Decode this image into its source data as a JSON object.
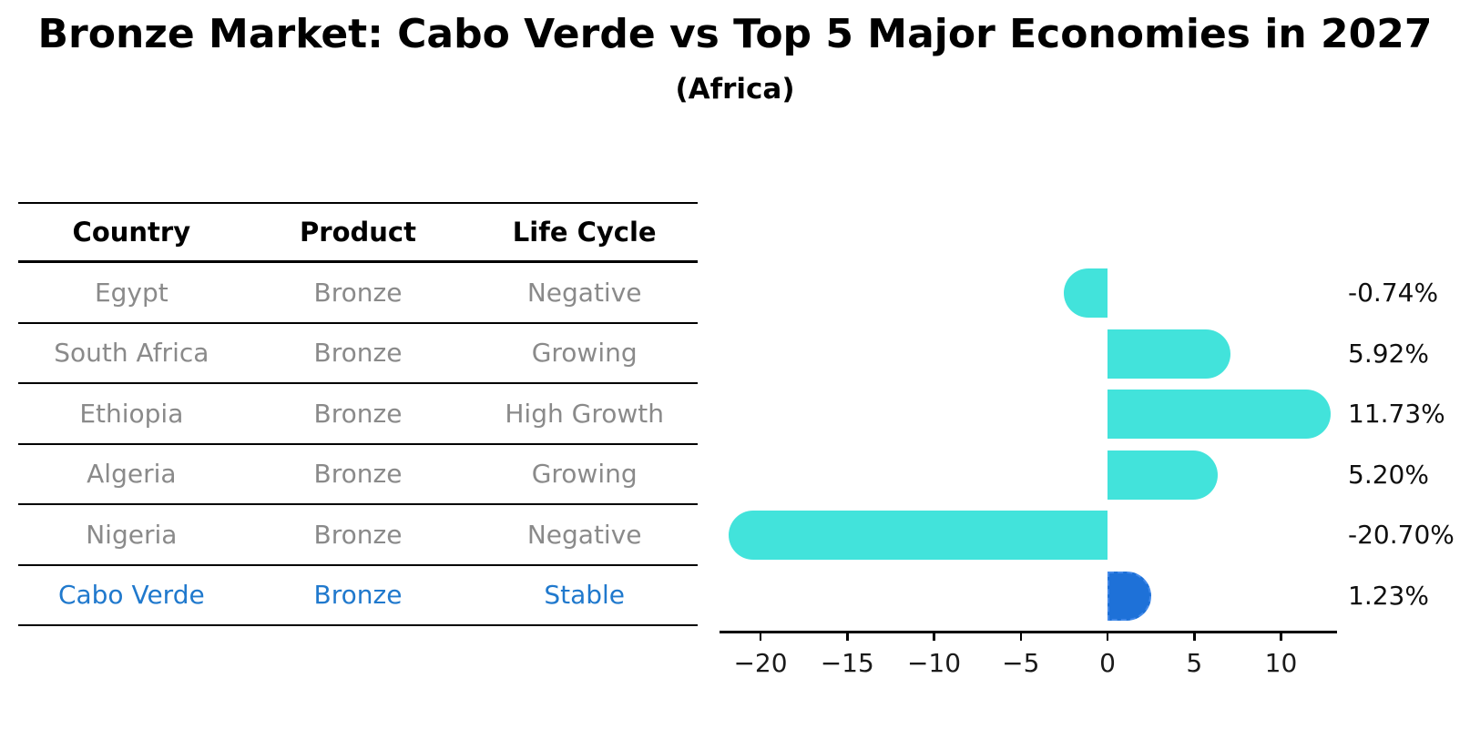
{
  "title": "Bronze Market: Cabo Verde vs Top 5 Major Economies in 2027",
  "subtitle": "(Africa)",
  "table": {
    "headers": [
      "Country",
      "Product",
      "Life Cycle"
    ]
  },
  "chart_data": {
    "type": "bar",
    "orientation": "horizontal",
    "title": "Bronze Market: Cabo Verde vs Top 5 Major Economies in 2027",
    "subtitle": "(Africa)",
    "categories": [
      "Egypt",
      "South Africa",
      "Ethiopia",
      "Algeria",
      "Nigeria",
      "Cabo Verde"
    ],
    "values": [
      -0.74,
      5.92,
      11.73,
      5.2,
      -20.7,
      1.23
    ],
    "rows": [
      {
        "country": "Egypt",
        "product": "Bronze",
        "life_cycle": "Negative",
        "value": -0.74,
        "value_label": "-0.74%",
        "highlight": false
      },
      {
        "country": "South Africa",
        "product": "Bronze",
        "life_cycle": "Growing",
        "value": 5.92,
        "value_label": "5.92%",
        "highlight": false
      },
      {
        "country": "Ethiopia",
        "product": "Bronze",
        "life_cycle": "High Growth",
        "value": 11.73,
        "value_label": "11.73%",
        "highlight": false
      },
      {
        "country": "Algeria",
        "product": "Bronze",
        "life_cycle": "Growing",
        "value": 5.2,
        "value_label": "5.20%",
        "highlight": false
      },
      {
        "country": "Nigeria",
        "product": "Bronze",
        "life_cycle": "Negative",
        "value": -20.7,
        "value_label": "-20.70%",
        "highlight": false
      },
      {
        "country": "Cabo Verde",
        "product": "Bronze",
        "life_cycle": "Stable",
        "value": 1.23,
        "value_label": "1.23%",
        "highlight": true
      }
    ],
    "x_ticks": [
      -20,
      -15,
      -10,
      -5,
      0,
      5,
      10
    ],
    "x_tick_labels": [
      "−20",
      "−15",
      "−10",
      "−5",
      "0",
      "5",
      "10"
    ],
    "xlim": [
      -22.4,
      13.2
    ],
    "grid": false,
    "legend": null,
    "colors": {
      "bar": "#42e3db",
      "highlight_bar": "#1e71d8",
      "highlight_text": "#2079cd",
      "row_text": "#8a8a8a",
      "header_text": "#000000",
      "value_text": "#0f0f0f",
      "axis": "#000000"
    }
  }
}
